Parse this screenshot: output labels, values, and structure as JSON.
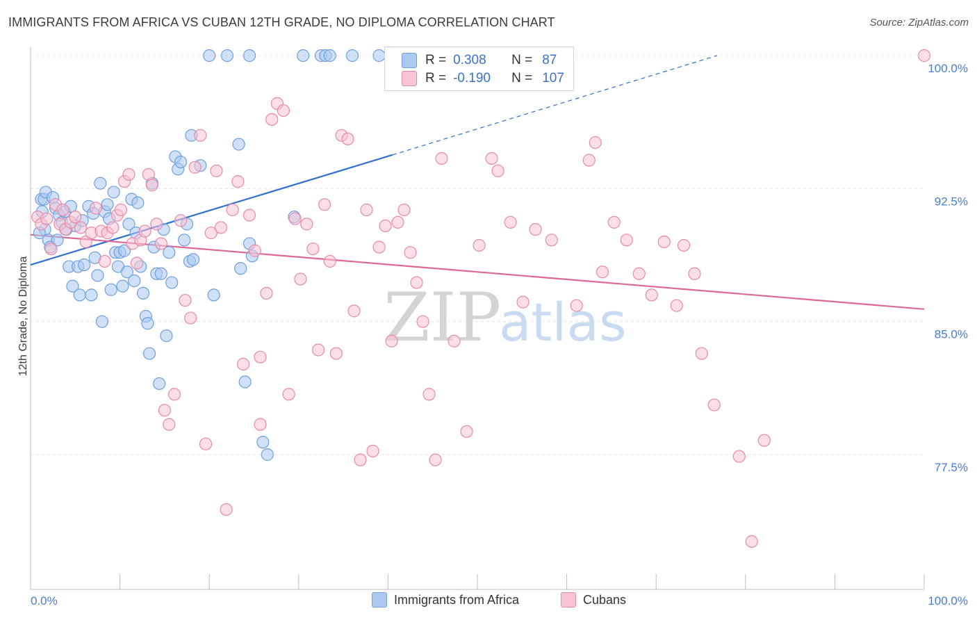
{
  "title": "IMMIGRANTS FROM AFRICA VS CUBAN 12TH GRADE, NO DIPLOMA CORRELATION CHART",
  "source": "Source: ZipAtlas.com",
  "watermark": {
    "zip": "ZIP",
    "atlas": "atlas"
  },
  "legend": {
    "r_label": "R =",
    "n_label": "N =",
    "rows": [
      {
        "r": "0.308",
        "n": "87",
        "color": "#aac8f0",
        "border": "#6f9fdc"
      },
      {
        "r": "-0.190",
        "n": "107",
        "color": "#f8c3d3",
        "border": "#e58aa8"
      }
    ]
  },
  "chart_data": {
    "type": "scatter",
    "title": "IMMIGRANTS FROM AFRICA VS CUBAN 12TH GRADE, NO DIPLOMA CORRELATION CHART",
    "xlabel": "",
    "ylabel": "12th Grade, No Diploma",
    "xlim": [
      0,
      100
    ],
    "ylim": [
      72.0,
      101.0
    ],
    "x_tick_labels": [
      "0.0%",
      "100.0%"
    ],
    "y_ticks": [
      77.5,
      85.0,
      92.5,
      100.0
    ],
    "y_tick_labels": [
      "77.5%",
      "85.0%",
      "92.5%",
      "100.0%"
    ],
    "grid": true,
    "legend_position": "top-center",
    "series": [
      {
        "name": "Immigrants from Africa",
        "color": "#6f9fdc",
        "fill": "#aac8f0",
        "trend": {
          "x0": 0,
          "y0": 88.2,
          "x1": 40.5,
          "y1": 94.4,
          "dash_to_x": 76.8,
          "dash_to_y": 100.0
        },
        "points": [
          [
            1.2,
            91.9
          ],
          [
            1.3,
            91.2
          ],
          [
            1.5,
            91.9
          ],
          [
            1.6,
            90.2
          ],
          [
            1.7,
            92.3
          ],
          [
            2.0,
            89.6
          ],
          [
            2.2,
            89.2
          ],
          [
            2.5,
            92.0
          ],
          [
            2.8,
            91.4
          ],
          [
            3.0,
            89.6
          ],
          [
            3.2,
            91.0
          ],
          [
            3.5,
            90.6
          ],
          [
            3.8,
            91.2
          ],
          [
            4.0,
            90.2
          ],
          [
            4.3,
            88.1
          ],
          [
            4.5,
            91.5
          ],
          [
            4.7,
            87.0
          ],
          [
            5.0,
            90.4
          ],
          [
            5.3,
            88.1
          ],
          [
            5.5,
            86.5
          ],
          [
            5.8,
            90.7
          ],
          [
            6.0,
            88.2
          ],
          [
            6.5,
            91.5
          ],
          [
            6.8,
            86.5
          ],
          [
            7.0,
            91.1
          ],
          [
            7.2,
            88.6
          ],
          [
            7.5,
            87.6
          ],
          [
            7.8,
            92.8
          ],
          [
            8.0,
            85.0
          ],
          [
            8.3,
            91.2
          ],
          [
            8.6,
            91.6
          ],
          [
            8.8,
            90.8
          ],
          [
            9.0,
            86.8
          ],
          [
            9.3,
            92.3
          ],
          [
            9.5,
            88.9
          ],
          [
            9.8,
            88.1
          ],
          [
            10.0,
            88.9
          ],
          [
            10.3,
            87.0
          ],
          [
            10.5,
            89.0
          ],
          [
            10.8,
            87.8
          ],
          [
            11.0,
            90.5
          ],
          [
            11.3,
            91.9
          ],
          [
            11.6,
            87.3
          ],
          [
            11.8,
            90.0
          ],
          [
            12.0,
            91.7
          ],
          [
            12.3,
            88.1
          ],
          [
            12.6,
            86.6
          ],
          [
            12.9,
            85.3
          ],
          [
            13.1,
            84.9
          ],
          [
            13.3,
            83.2
          ],
          [
            13.6,
            92.8
          ],
          [
            13.8,
            89.2
          ],
          [
            14.1,
            87.7
          ],
          [
            14.4,
            81.5
          ],
          [
            14.6,
            87.7
          ],
          [
            14.9,
            90.2
          ],
          [
            15.2,
            84.2
          ],
          [
            15.5,
            88.9
          ],
          [
            15.8,
            87.2
          ],
          [
            16.2,
            94.3
          ],
          [
            16.5,
            93.6
          ],
          [
            16.8,
            94.0
          ],
          [
            17.2,
            89.6
          ],
          [
            17.5,
            90.5
          ],
          [
            17.8,
            88.4
          ],
          [
            18.0,
            95.5
          ],
          [
            18.2,
            88.5
          ],
          [
            19.0,
            93.8
          ],
          [
            20.5,
            86.5
          ],
          [
            23.3,
            95.0
          ],
          [
            23.5,
            88.0
          ],
          [
            24.0,
            81.6
          ],
          [
            24.5,
            89.4
          ],
          [
            24.8,
            88.7
          ],
          [
            26.0,
            78.2
          ],
          [
            26.5,
            77.5
          ],
          [
            29.5,
            90.9
          ],
          [
            20.0,
            100.0
          ],
          [
            22.0,
            100.0
          ],
          [
            24.5,
            100.0
          ],
          [
            30.5,
            100.0
          ],
          [
            32.5,
            100.0
          ],
          [
            33.0,
            100.0
          ],
          [
            33.5,
            100.0
          ],
          [
            36.0,
            100.0
          ],
          [
            39.0,
            100.0
          ],
          [
            1.0,
            90.0
          ]
        ]
      },
      {
        "name": "Cubans",
        "color": "#e58aa8",
        "fill": "#f8c3d3",
        "trend": {
          "x0": 0,
          "y0": 89.9,
          "x1": 100,
          "y1": 85.7
        },
        "points": [
          [
            0.8,
            90.9
          ],
          [
            1.2,
            90.5
          ],
          [
            1.8,
            90.8
          ],
          [
            2.3,
            89.1
          ],
          [
            2.8,
            91.6
          ],
          [
            3.3,
            90.5
          ],
          [
            3.6,
            91.3
          ],
          [
            3.9,
            90.2
          ],
          [
            4.5,
            90.6
          ],
          [
            5.0,
            90.9
          ],
          [
            5.6,
            90.3
          ],
          [
            6.2,
            89.5
          ],
          [
            6.8,
            90.0
          ],
          [
            7.3,
            91.4
          ],
          [
            7.9,
            90.1
          ],
          [
            8.3,
            88.4
          ],
          [
            8.6,
            90.0
          ],
          [
            9.2,
            90.3
          ],
          [
            9.7,
            91.0
          ],
          [
            10.1,
            91.3
          ],
          [
            10.5,
            92.9
          ],
          [
            11.0,
            93.3
          ],
          [
            11.4,
            89.4
          ],
          [
            11.9,
            88.3
          ],
          [
            12.3,
            89.6
          ],
          [
            12.8,
            90.1
          ],
          [
            13.2,
            93.3
          ],
          [
            13.6,
            92.7
          ],
          [
            14.1,
            90.5
          ],
          [
            14.6,
            89.4
          ],
          [
            15.0,
            80.0
          ],
          [
            15.5,
            79.2
          ],
          [
            16.1,
            80.9
          ],
          [
            16.8,
            90.7
          ],
          [
            17.3,
            86.2
          ],
          [
            17.9,
            85.2
          ],
          [
            18.4,
            93.7
          ],
          [
            19.0,
            95.5
          ],
          [
            19.6,
            78.1
          ],
          [
            20.2,
            90.0
          ],
          [
            20.8,
            93.5
          ],
          [
            21.3,
            90.3
          ],
          [
            21.9,
            74.4
          ],
          [
            22.6,
            91.3
          ],
          [
            23.2,
            92.9
          ],
          [
            23.8,
            82.6
          ],
          [
            24.5,
            91.0
          ],
          [
            25.1,
            89.0
          ],
          [
            25.7,
            79.2
          ],
          [
            26.4,
            86.6
          ],
          [
            27.0,
            96.4
          ],
          [
            27.6,
            97.3
          ],
          [
            28.3,
            96.9
          ],
          [
            28.9,
            80.9
          ],
          [
            29.6,
            90.8
          ],
          [
            30.2,
            87.4
          ],
          [
            30.9,
            90.5
          ],
          [
            31.6,
            89.1
          ],
          [
            32.2,
            83.4
          ],
          [
            32.9,
            91.6
          ],
          [
            33.5,
            88.4
          ],
          [
            34.2,
            83.2
          ],
          [
            34.8,
            95.5
          ],
          [
            35.5,
            95.3
          ],
          [
            36.2,
            85.6
          ],
          [
            36.9,
            77.2
          ],
          [
            37.6,
            91.3
          ],
          [
            38.3,
            77.7
          ],
          [
            39.0,
            89.2
          ],
          [
            39.7,
            90.4
          ],
          [
            40.4,
            83.9
          ],
          [
            41.1,
            90.6
          ],
          [
            41.8,
            91.3
          ],
          [
            42.5,
            88.9
          ],
          [
            43.2,
            87.2
          ],
          [
            43.9,
            85.0
          ],
          [
            44.6,
            80.9
          ],
          [
            45.3,
            77.2
          ],
          [
            46.0,
            94.2
          ],
          [
            47.4,
            83.9
          ],
          [
            48.8,
            78.8
          ],
          [
            50.2,
            89.3
          ],
          [
            51.6,
            94.2
          ],
          [
            52.3,
            93.5
          ],
          [
            53.7,
            90.6
          ],
          [
            55.1,
            86.1
          ],
          [
            56.5,
            90.2
          ],
          [
            58.3,
            89.6
          ],
          [
            61.1,
            85.9
          ],
          [
            62.5,
            94.1
          ],
          [
            63.2,
            95.1
          ],
          [
            64.0,
            87.8
          ],
          [
            65.3,
            90.6
          ],
          [
            66.7,
            89.6
          ],
          [
            68.1,
            87.7
          ],
          [
            69.5,
            86.5
          ],
          [
            70.9,
            89.5
          ],
          [
            72.3,
            85.9
          ],
          [
            73.1,
            89.3
          ],
          [
            74.3,
            87.7
          ],
          [
            75.1,
            83.2
          ],
          [
            76.5,
            80.3
          ],
          [
            79.3,
            77.4
          ],
          [
            80.7,
            72.6
          ],
          [
            82.1,
            78.3
          ],
          [
            100.0,
            100.0
          ],
          [
            25.7,
            83.0
          ]
        ]
      }
    ]
  },
  "bottom_legend": [
    "Immigrants from Africa",
    "Cubans"
  ]
}
